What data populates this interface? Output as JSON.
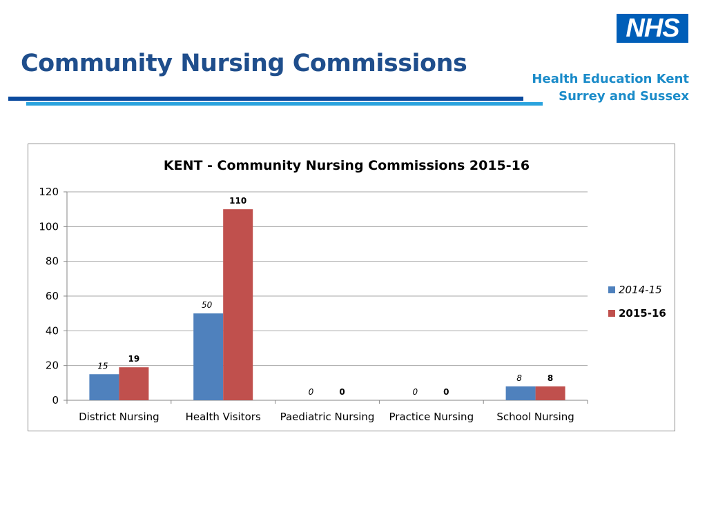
{
  "slide": {
    "title": "Community Nursing Commissions",
    "org_line1": "Health Education Kent",
    "org_line2": "Surrey and Sussex",
    "logo_text": "NHS"
  },
  "colors": {
    "title": "#1f4e8c",
    "series_2014": "#4f81bd",
    "series_2015": "#c0504d",
    "grid": "#a6a6a6"
  },
  "chart_data": {
    "type": "bar",
    "title": "KENT - Community Nursing Commissions 2015-16",
    "categories": [
      "District Nursing",
      "Health Visitors",
      "Paediatric Nursing",
      "Practice Nursing",
      "School Nursing"
    ],
    "series": [
      {
        "name": "2014-15",
        "values": [
          15,
          50,
          0,
          0,
          8
        ],
        "color": "#4f81bd",
        "label_style": "italic"
      },
      {
        "name": "2015-16",
        "values": [
          19,
          110,
          0,
          0,
          8
        ],
        "color": "#c0504d",
        "label_style": "bold"
      }
    ],
    "ylim": [
      0,
      120
    ],
    "yticks": [
      0,
      20,
      40,
      60,
      80,
      100,
      120
    ],
    "grid": true,
    "legend": "right",
    "xlabel": "",
    "ylabel": ""
  }
}
